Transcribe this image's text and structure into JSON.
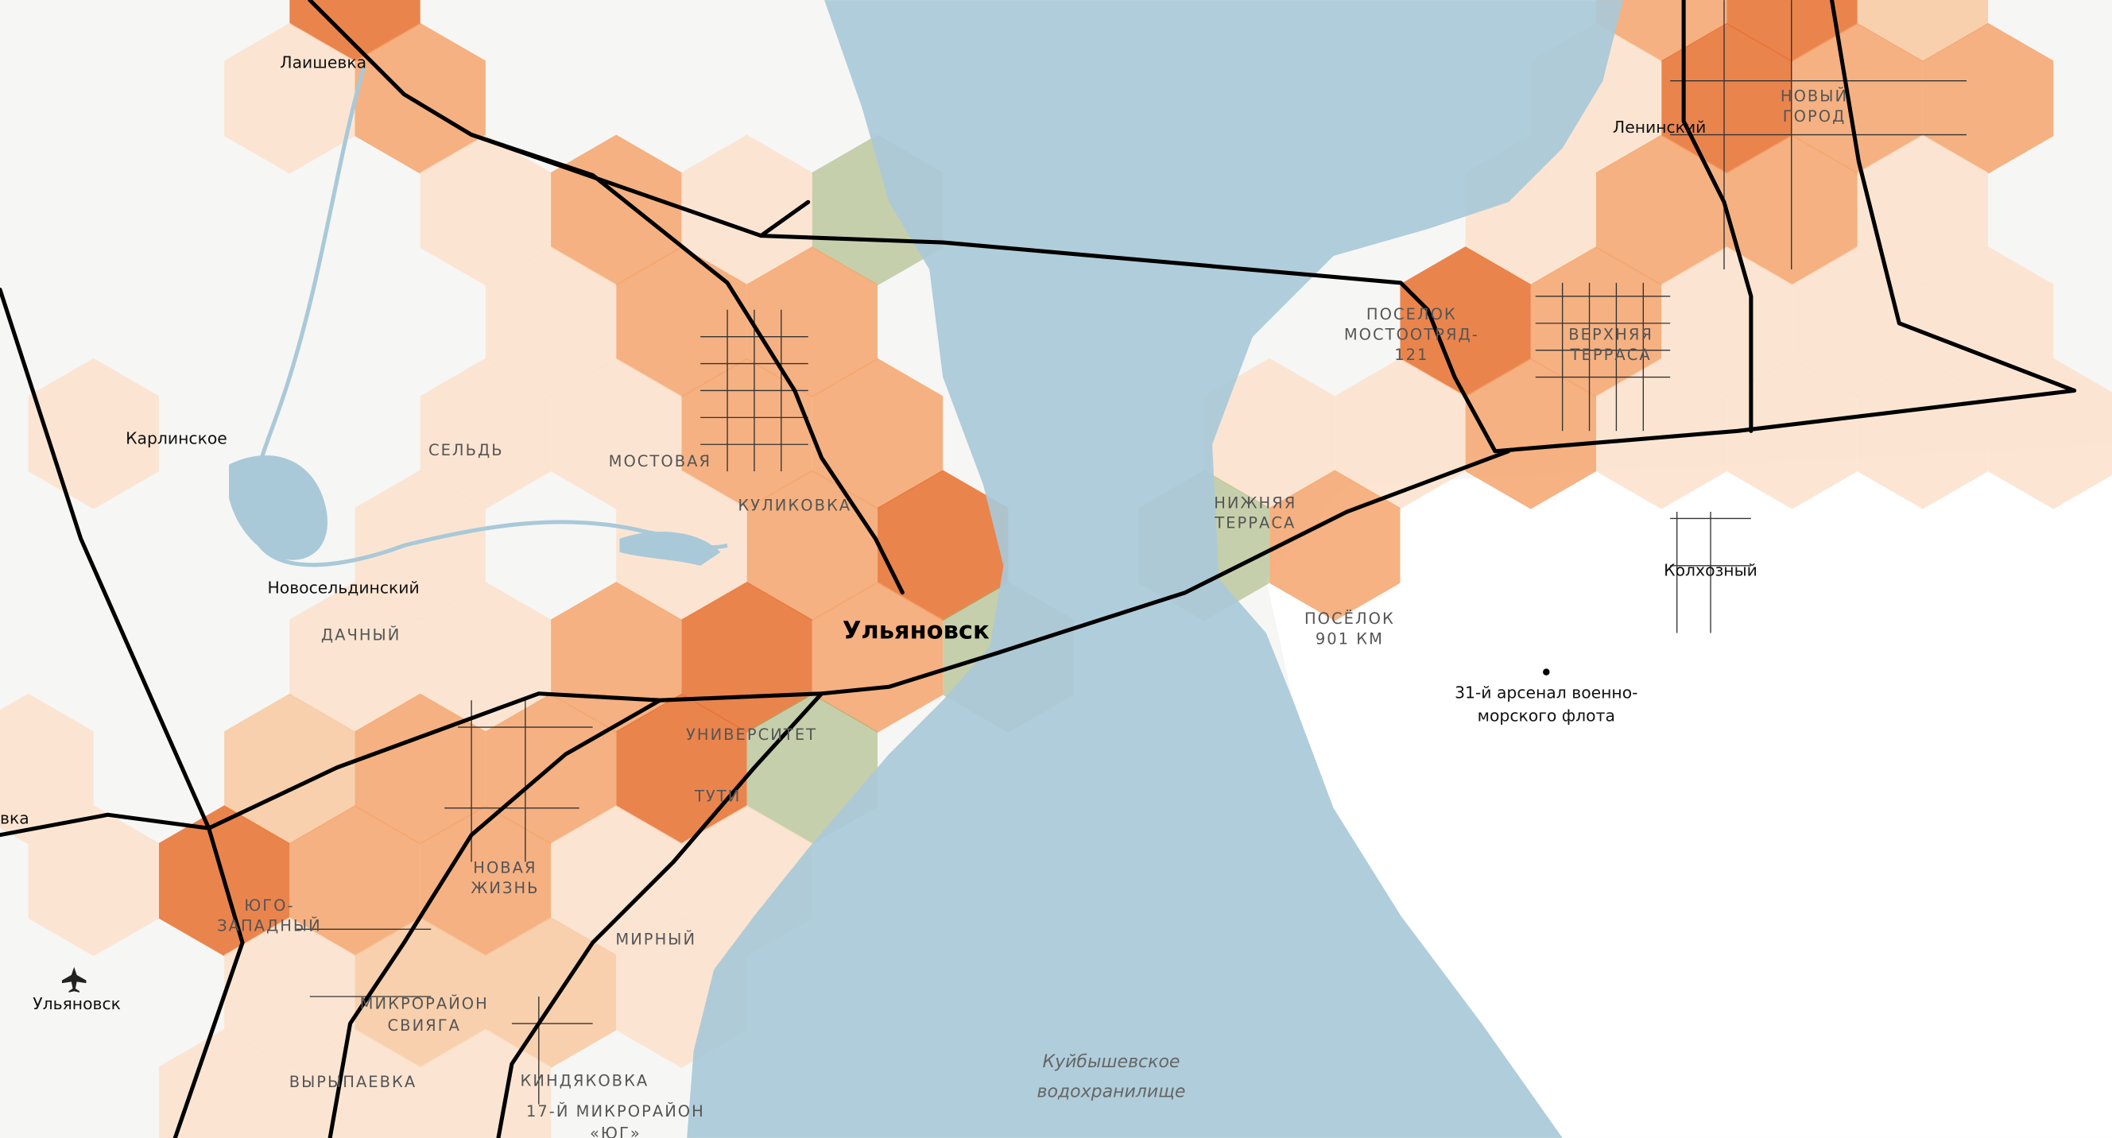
{
  "labels": [
    {
      "lines": [
        "Лаишевка"
      ]
    },
    {
      "lines": [
        "Ленинский"
      ]
    },
    {
      "lines": [
        "НОВЫЙ",
        "ГОРОД"
      ]
    },
    {
      "lines": [
        "ПОСЕЛОК",
        "МОСТООТРЯД-",
        "121"
      ]
    },
    {
      "lines": [
        "ВЕРХНЯЯ",
        "ТЕРРАСА"
      ]
    },
    {
      "lines": [
        "Карлинское"
      ]
    },
    {
      "lines": [
        "СЕЛЬДЬ"
      ]
    },
    {
      "lines": [
        "МОСТОВАЯ"
      ]
    },
    {
      "lines": [
        "КУЛИКОВКА"
      ]
    },
    {
      "lines": [
        "НИЖНЯЯ",
        "ТЕРРАСА"
      ]
    },
    {
      "lines": [
        "Новосельдинский"
      ]
    },
    {
      "lines": [
        "Колхозный"
      ]
    },
    {
      "lines": [
        "ДАЧНЫЙ"
      ]
    },
    {
      "lines": [
        "Ульяновск"
      ]
    },
    {
      "lines": [
        "ПОСЁЛОК",
        "901 КМ"
      ]
    },
    {
      "lines": [
        "31-й арсенал военно-",
        "морского флота"
      ]
    },
    {
      "lines": [
        "УНИВЕРСИТЕТ"
      ]
    },
    {
      "lines": [
        "ТУТИ"
      ]
    },
    {
      "lines": [
        "НОВАЯ",
        "ЖИЗНЬ"
      ]
    },
    {
      "lines": [
        "ЮГО-",
        "ЗАПАДНЫЙ"
      ]
    },
    {
      "lines": [
        "МИРНЫЙ"
      ]
    },
    {
      "lines": [
        "Ульяновск"
      ]
    },
    {
      "lines": [
        "МИКРОРАЙОН",
        "СВИЯГА"
      ]
    },
    {
      "lines": [
        "ВЫРЫПАЕВКА"
      ]
    },
    {
      "lines": [
        "КИНДЯКОВКА"
      ]
    },
    {
      "lines": [
        "17-Й МИКРОРАЙОН",
        "«ЮГ»"
      ]
    },
    {
      "lines": [
        "Куйбышевское",
        "водохранилище"
      ]
    },
    {
      "lines": [
        "таевка"
      ]
    }
  ]
}
